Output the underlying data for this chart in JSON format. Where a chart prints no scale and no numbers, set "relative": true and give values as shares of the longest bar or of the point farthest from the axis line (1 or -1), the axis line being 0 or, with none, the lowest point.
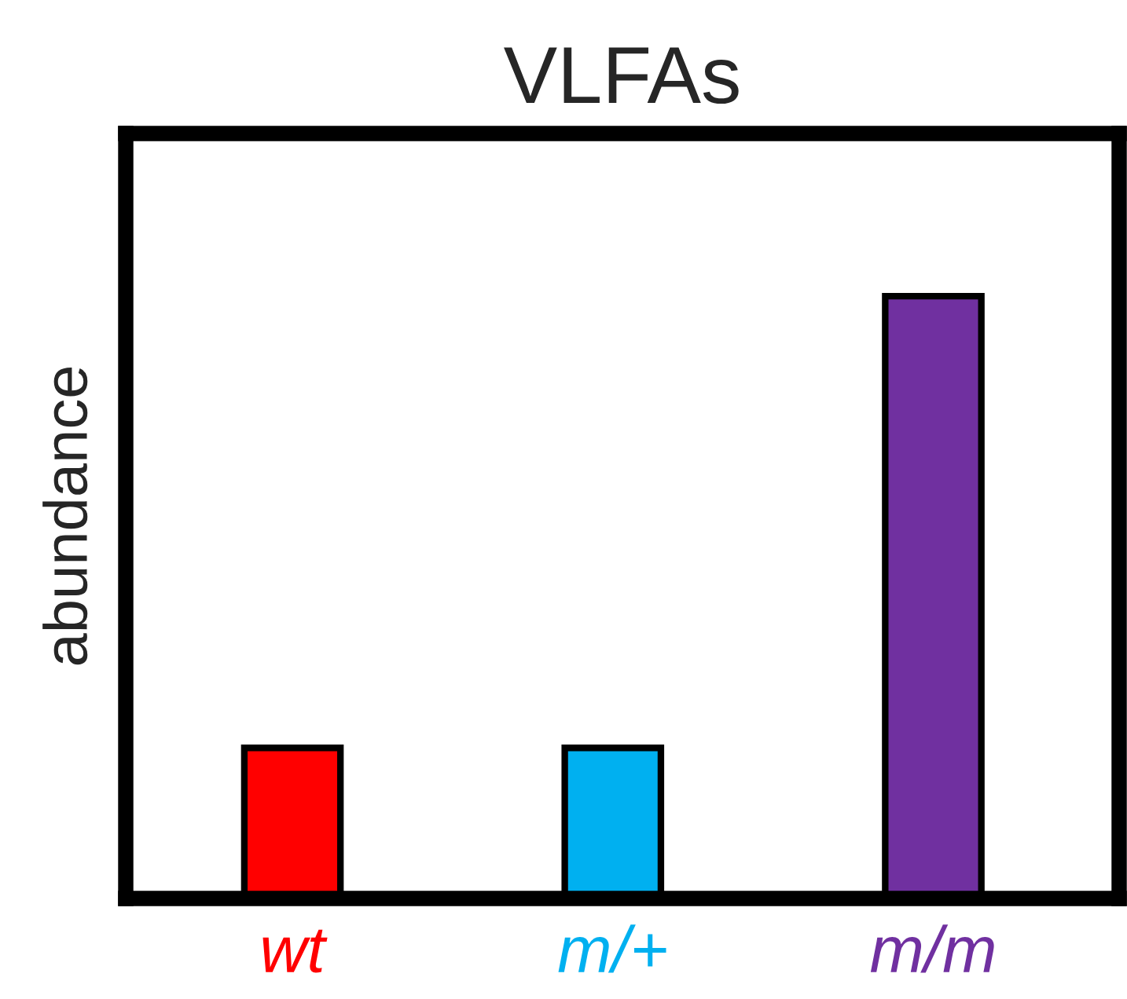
{
  "chart_data": {
    "type": "bar",
    "title": "VLFAs",
    "ylabel": "abundance",
    "categories": [
      "wt",
      "m/+",
      "m/m"
    ],
    "values": [
      0.25,
      0.25,
      1
    ],
    "colors": [
      "#ff0000",
      "#00b0f0",
      "#7030a0"
    ],
    "relative": true,
    "grid": false,
    "legend": false
  }
}
